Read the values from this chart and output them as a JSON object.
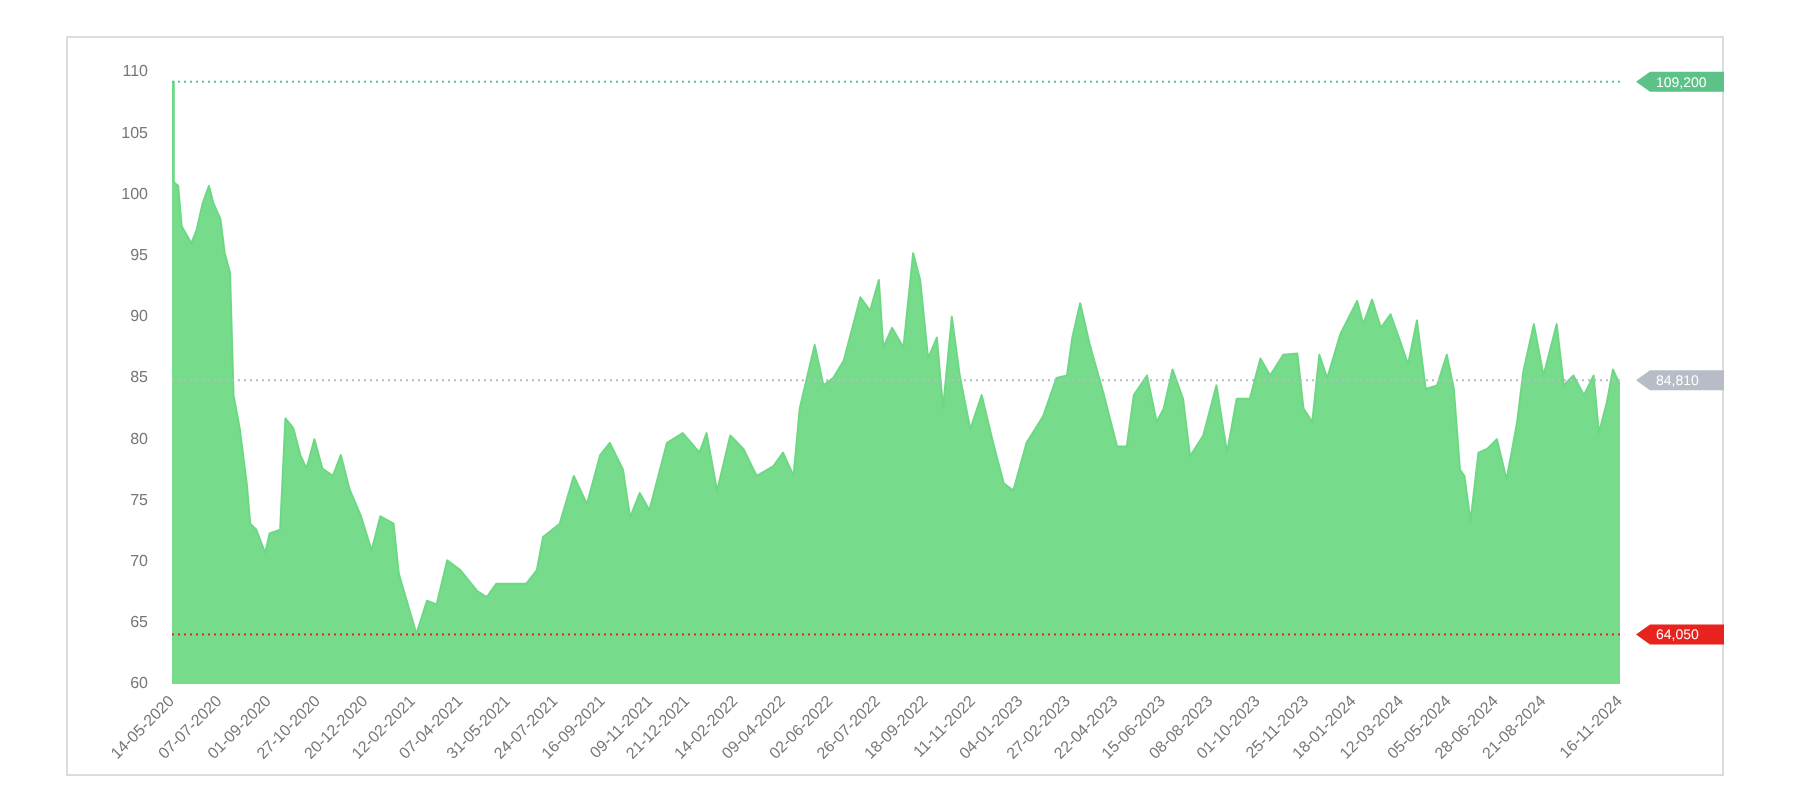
{
  "chart_data": {
    "type": "area",
    "xlim": [
      "2020-05-14",
      "2024-11-16"
    ],
    "ylim": [
      60,
      110
    ],
    "yticks": [
      60,
      65,
      70,
      75,
      80,
      85,
      90,
      95,
      100,
      105,
      110
    ],
    "grid": false,
    "legend": false,
    "marker": "none",
    "xticks": [
      {
        "value": "2020-05-14",
        "label": "14-05-2020"
      },
      {
        "value": "2020-07-07",
        "label": "07-07-2020"
      },
      {
        "value": "2020-09-01",
        "label": "01-09-2020"
      },
      {
        "value": "2020-10-27",
        "label": "27-10-2020"
      },
      {
        "value": "2020-12-20",
        "label": "20-12-2020"
      },
      {
        "value": "2021-02-12",
        "label": "12-02-2021"
      },
      {
        "value": "2021-04-07",
        "label": "07-04-2021"
      },
      {
        "value": "2021-05-31",
        "label": "31-05-2021"
      },
      {
        "value": "2021-07-24",
        "label": "24-07-2021"
      },
      {
        "value": "2021-09-16",
        "label": "16-09-2021"
      },
      {
        "value": "2021-11-09",
        "label": "09-11-2021"
      },
      {
        "value": "2021-12-21",
        "label": "21-12-2021"
      },
      {
        "value": "2022-02-14",
        "label": "14-02-2022"
      },
      {
        "value": "2022-04-09",
        "label": "09-04-2022"
      },
      {
        "value": "2022-06-02",
        "label": "02-06-2022"
      },
      {
        "value": "2022-07-26",
        "label": "26-07-2022"
      },
      {
        "value": "2022-09-18",
        "label": "18-09-2022"
      },
      {
        "value": "2022-11-11",
        "label": "11-11-2022"
      },
      {
        "value": "2023-01-04",
        "label": "04-01-2023"
      },
      {
        "value": "2023-02-27",
        "label": "27-02-2023"
      },
      {
        "value": "2023-04-22",
        "label": "22-04-2023"
      },
      {
        "value": "2023-06-15",
        "label": "15-06-2023"
      },
      {
        "value": "2023-08-08",
        "label": "08-08-2023"
      },
      {
        "value": "2023-10-01",
        "label": "01-10-2023"
      },
      {
        "value": "2023-11-25",
        "label": "25-11-2023"
      },
      {
        "value": "2024-01-18",
        "label": "18-01-2024"
      },
      {
        "value": "2024-03-12",
        "label": "12-03-2024"
      },
      {
        "value": "2024-05-05",
        "label": "05-05-2024"
      },
      {
        "value": "2024-06-28",
        "label": "28-06-2024"
      },
      {
        "value": "2024-08-21",
        "label": "21-08-2024"
      },
      {
        "value": "2024-11-16",
        "label": "16-11-2024"
      }
    ],
    "ref_lines": [
      {
        "axis": "y",
        "value": 109.2,
        "label": "109,200",
        "color": "#5cc288",
        "line_style": "dotted"
      },
      {
        "axis": "y",
        "value": 84.81,
        "label": "84,810",
        "color": "#b7bcc6",
        "line_style": "dotted"
      },
      {
        "axis": "y",
        "value": 64.05,
        "label": "64,050",
        "color": "#e8221c",
        "line_style": "dotted"
      }
    ],
    "series": [
      {
        "color": "#6dd884",
        "x": [
          "2020-05-14",
          "2020-05-16",
          "2020-05-21",
          "2020-05-25",
          "2020-06-05",
          "2020-06-11",
          "2020-06-18",
          "2020-06-25",
          "2020-06-30",
          "2020-07-08",
          "2020-07-13",
          "2020-07-19",
          "2020-07-23",
          "2020-07-30",
          "2020-08-07",
          "2020-08-11",
          "2020-08-18",
          "2020-08-28",
          "2020-09-02",
          "2020-09-14",
          "2020-09-20",
          "2020-09-29",
          "2020-10-07",
          "2020-10-14",
          "2020-10-23",
          "2020-11-01",
          "2020-11-13",
          "2020-11-22",
          "2020-12-02",
          "2020-12-15",
          "2020-12-27",
          "2021-01-06",
          "2021-01-21",
          "2021-01-27",
          "2021-02-05",
          "2021-02-16",
          "2021-02-28",
          "2021-03-11",
          "2021-03-23",
          "2021-04-07",
          "2021-04-26",
          "2021-05-07",
          "2021-05-18",
          "2021-06-06",
          "2021-06-21",
          "2021-07-03",
          "2021-07-10",
          "2021-07-29",
          "2021-08-14",
          "2021-08-29",
          "2021-09-13",
          "2021-09-24",
          "2021-10-09",
          "2021-10-17",
          "2021-10-28",
          "2021-11-08",
          "2021-11-28",
          "2021-12-16",
          "2022-01-04",
          "2022-01-12",
          "2022-01-24",
          "2022-02-08",
          "2022-02-23",
          "2022-03-10",
          "2022-03-29",
          "2022-04-09",
          "2022-04-21",
          "2022-04-28",
          "2022-05-15",
          "2022-05-25",
          "2022-06-05",
          "2022-06-17",
          "2022-07-06",
          "2022-07-17",
          "2022-07-27",
          "2022-08-01",
          "2022-08-11",
          "2022-08-24",
          "2022-09-04",
          "2022-09-12",
          "2022-09-21",
          "2022-10-01",
          "2022-10-08",
          "2022-10-18",
          "2022-10-27",
          "2022-11-08",
          "2022-11-21",
          "2022-12-04",
          "2022-12-16",
          "2022-12-27",
          "2023-01-11",
          "2023-01-30",
          "2023-02-14",
          "2023-02-26",
          "2023-03-04",
          "2023-03-13",
          "2023-03-24",
          "2023-04-09",
          "2023-04-24",
          "2023-05-05",
          "2023-05-13",
          "2023-05-28",
          "2023-06-08",
          "2023-06-16",
          "2023-06-26",
          "2023-07-08",
          "2023-07-16",
          "2023-07-31",
          "2023-08-15",
          "2023-08-27",
          "2023-09-07",
          "2023-09-22",
          "2023-10-04",
          "2023-10-15",
          "2023-10-30",
          "2023-11-15",
          "2023-11-22",
          "2023-12-02",
          "2023-12-10",
          "2023-12-19",
          "2024-01-03",
          "2024-01-22",
          "2024-01-29",
          "2024-02-08",
          "2024-02-18",
          "2024-02-29",
          "2024-03-11",
          "2024-03-20",
          "2024-03-30",
          "2024-04-09",
          "2024-04-22",
          "2024-05-03",
          "2024-05-11",
          "2024-05-18",
          "2024-05-23",
          "2024-05-30",
          "2024-06-08",
          "2024-06-18",
          "2024-06-29",
          "2024-07-10",
          "2024-07-22",
          "2024-07-29",
          "2024-08-10",
          "2024-08-21",
          "2024-09-05",
          "2024-09-13",
          "2024-09-24",
          "2024-10-06",
          "2024-10-17",
          "2024-10-23",
          "2024-11-01",
          "2024-11-08",
          "2024-11-16"
        ],
        "values": [
          109.2,
          101,
          100.7,
          97.4,
          96,
          97.1,
          99.3,
          100.7,
          99.3,
          98,
          95.2,
          93.6,
          83.6,
          80.9,
          76.4,
          73.1,
          72.6,
          70.7,
          72.3,
          72.6,
          81.7,
          80.9,
          78.7,
          77.6,
          80,
          77.6,
          77,
          78.7,
          75.9,
          73.7,
          70.9,
          73.7,
          73.1,
          69,
          66.8,
          64.1,
          66.8,
          66.5,
          70.1,
          69.3,
          67.6,
          67.1,
          68.2,
          68.2,
          68.2,
          69.3,
          72,
          73.1,
          77,
          74.7,
          78.7,
          79.7,
          77.5,
          73.6,
          75.6,
          74.2,
          79.7,
          80.5,
          78.9,
          80.5,
          75.8,
          80.3,
          79.2,
          77,
          77.8,
          78.9,
          77,
          82.5,
          87.7,
          84.4,
          85,
          86.4,
          91.6,
          90.5,
          93,
          87.5,
          89.1,
          87.5,
          95.2,
          93,
          86.6,
          88.3,
          82.5,
          90,
          85.2,
          80.8,
          83.6,
          79.7,
          76.4,
          75.8,
          79.7,
          81.9,
          85,
          85.2,
          88.3,
          91.1,
          87.7,
          83.6,
          79.4,
          79.4,
          83.6,
          85.2,
          81.4,
          82.5,
          85.7,
          83.3,
          78.6,
          80.3,
          84.4,
          78.9,
          83.3,
          83.3,
          86.6,
          85.2,
          86.9,
          87,
          82.5,
          81.4,
          86.9,
          85,
          88.6,
          91.3,
          89.4,
          91.4,
          89.1,
          90.2,
          88,
          86.1,
          89.7,
          84.1,
          84.4,
          86.9,
          84.1,
          77.5,
          77,
          73.3,
          78.9,
          79.2,
          80,
          76.7,
          81.4,
          85.5,
          89.4,
          85.2,
          89.4,
          84.4,
          85.2,
          83.6,
          85.2,
          80.5,
          83,
          85.7,
          84.4
        ]
      }
    ]
  }
}
